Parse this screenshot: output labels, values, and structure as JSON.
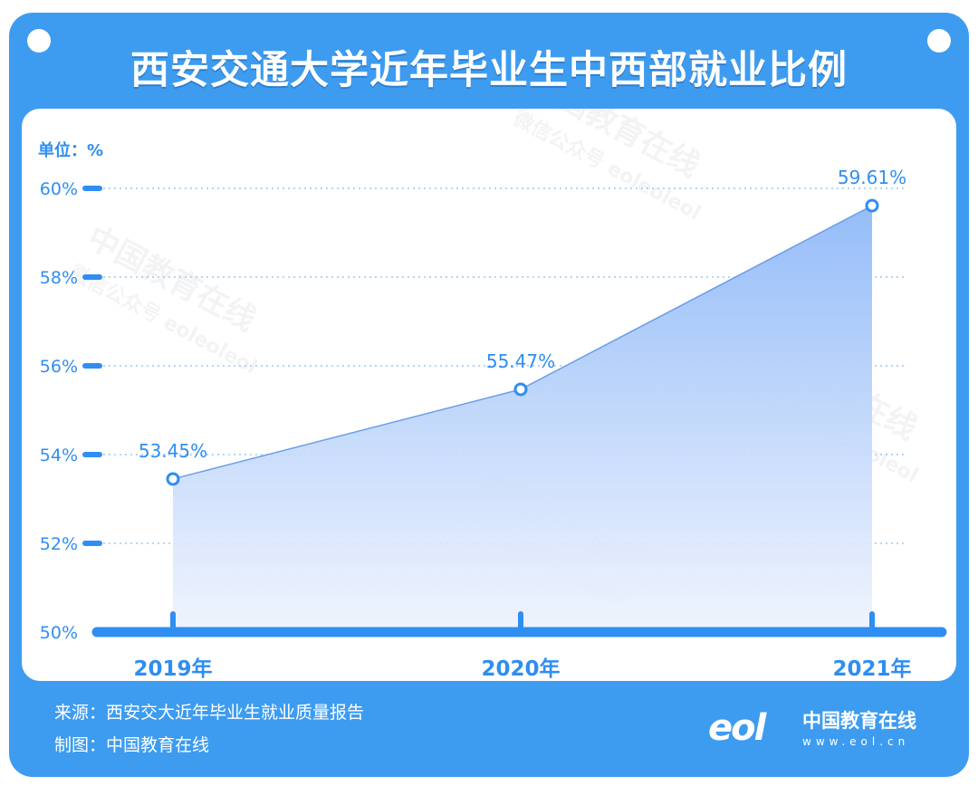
{
  "header": {
    "title": "西安交通大学近年毕业生中西部就业比例"
  },
  "footer": {
    "source": "来源：西安交大近年毕业生就业质量报告",
    "producer": "制图：中国教育在线"
  },
  "logo": {
    "mark": "eol",
    "name": "中国教育在线",
    "url": "www.eol.cn"
  },
  "watermark": {
    "brand": "中国教育在线",
    "sub": "微信公众号 eoleoleol"
  },
  "colors": {
    "frame": "#3d9cf0",
    "accent": "#2f8ef2",
    "text_blue": "#2f8ef2"
  },
  "chart_data": {
    "type": "area",
    "unit_label": "单位：%",
    "categories": [
      "2019年",
      "2020年",
      "2021年"
    ],
    "values": [
      53.45,
      55.47,
      59.61
    ],
    "value_labels": [
      "53.45%",
      "55.47%",
      "59.61%"
    ],
    "y_ticks": [
      {
        "value": 60,
        "label": "60%"
      },
      {
        "value": 58,
        "label": "58%"
      },
      {
        "value": 56,
        "label": "56%"
      },
      {
        "value": 54,
        "label": "54%"
      },
      {
        "value": 52,
        "label": "52%"
      },
      {
        "value": 50,
        "label": "50%"
      }
    ],
    "ylim": [
      50,
      60
    ],
    "grid": true,
    "legend": "none"
  }
}
